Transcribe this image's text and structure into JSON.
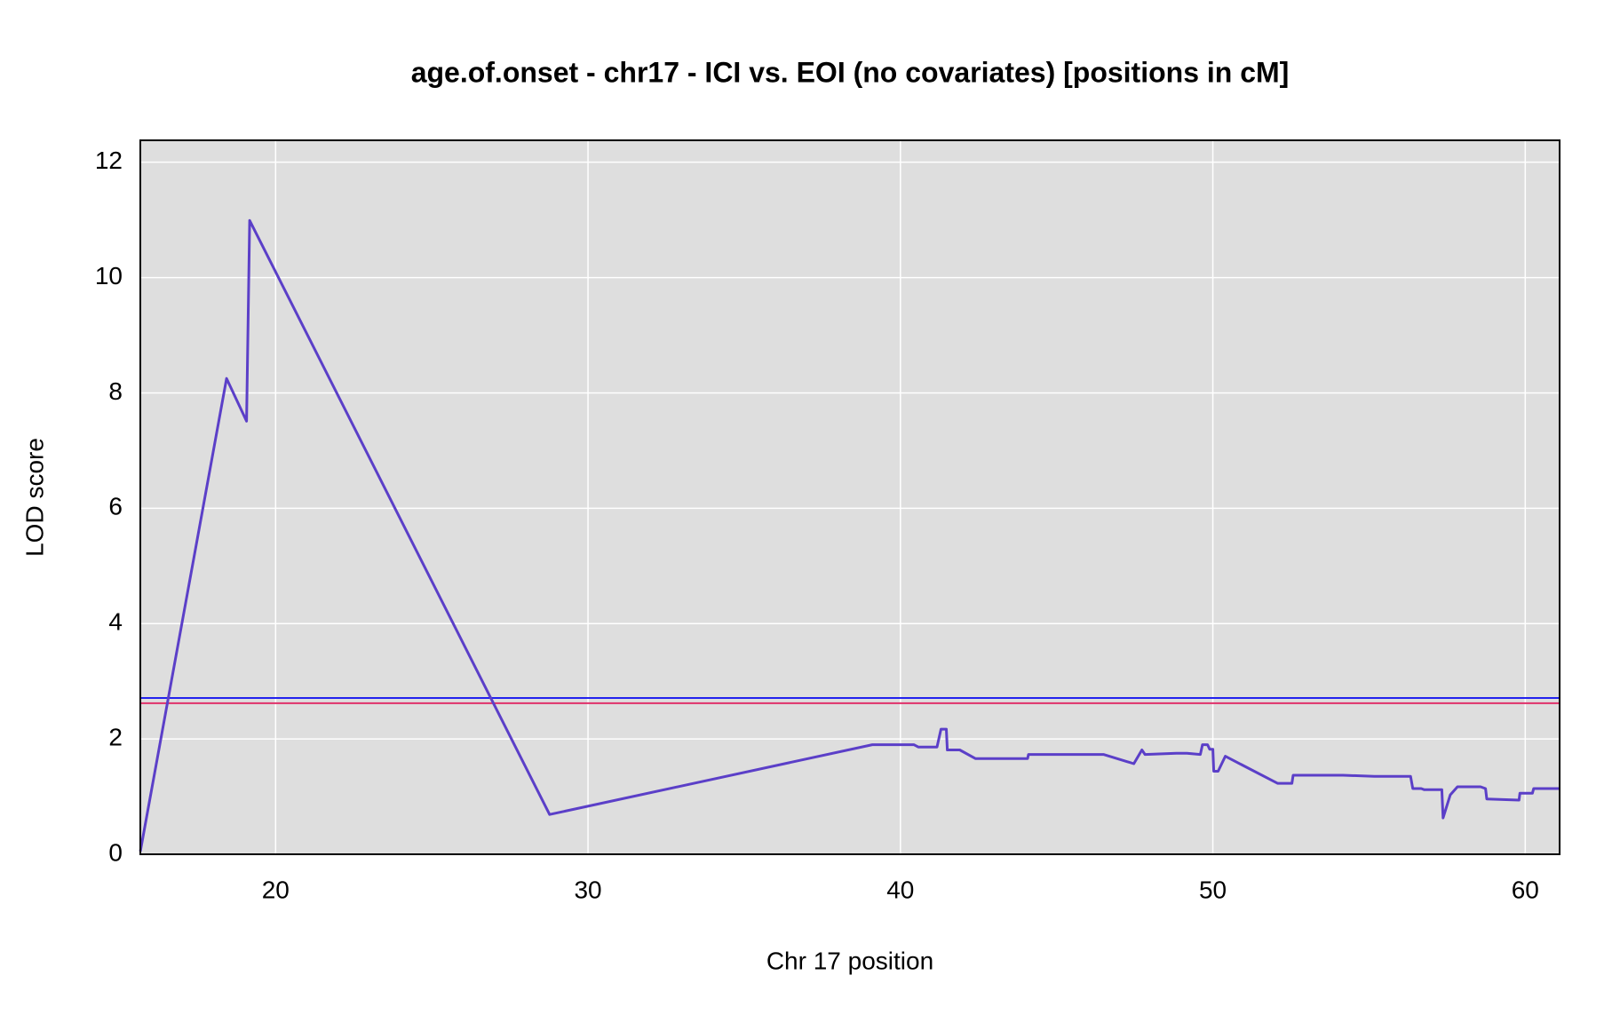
{
  "chart_data": {
    "type": "line",
    "title": "age.of.onset - chr17 - ICI vs. EOI (no covariates) [positions in cM]",
    "x_label": "Chr 17 position",
    "y_label": "LOD score",
    "x": [
      15.67,
      18.43,
      19.07,
      19.17,
      28.77,
      39.1,
      40.43,
      40.57,
      41.17,
      41.3,
      41.47,
      41.5,
      41.9,
      42.4,
      44.07,
      44.1,
      46.5,
      47.47,
      47.73,
      47.83,
      48.83,
      49.17,
      49.6,
      49.67,
      49.83,
      49.9,
      50.0,
      50.03,
      50.17,
      50.4,
      52.07,
      52.53,
      52.57,
      54.17,
      55.17,
      56.33,
      56.4,
      56.67,
      56.77,
      57.33,
      57.37,
      57.6,
      57.83,
      58.57,
      58.73,
      58.77,
      59.8,
      59.83,
      60.23,
      60.27,
      61.1
    ],
    "series": [
      {
        "color": "#5b3fc8",
        "values": [
          0.05,
          8.25,
          7.51,
          10.99,
          0.69,
          1.9,
          1.9,
          1.86,
          1.86,
          2.17,
          2.17,
          1.81,
          1.81,
          1.66,
          1.66,
          1.73,
          1.73,
          1.57,
          1.81,
          1.73,
          1.75,
          1.75,
          1.73,
          1.9,
          1.9,
          1.82,
          1.82,
          1.44,
          1.44,
          1.7,
          1.23,
          1.23,
          1.37,
          1.37,
          1.35,
          1.35,
          1.14,
          1.14,
          1.12,
          1.12,
          0.63,
          1.03,
          1.17,
          1.17,
          1.14,
          0.96,
          0.94,
          1.06,
          1.06,
          1.14,
          1.14
        ]
      }
    ],
    "hlines": [
      {
        "value": 2.71,
        "color": "#2222ee"
      },
      {
        "value": 2.62,
        "color": "#e0306a"
      }
    ],
    "xlim": [
      15.67,
      61.1
    ],
    "ylim": [
      0,
      12.38
    ],
    "xticks": [
      20,
      30,
      40,
      50,
      60
    ],
    "yticks": [
      0,
      2,
      4,
      6,
      8,
      10,
      12
    ],
    "grid": true,
    "background": "#dedede"
  }
}
